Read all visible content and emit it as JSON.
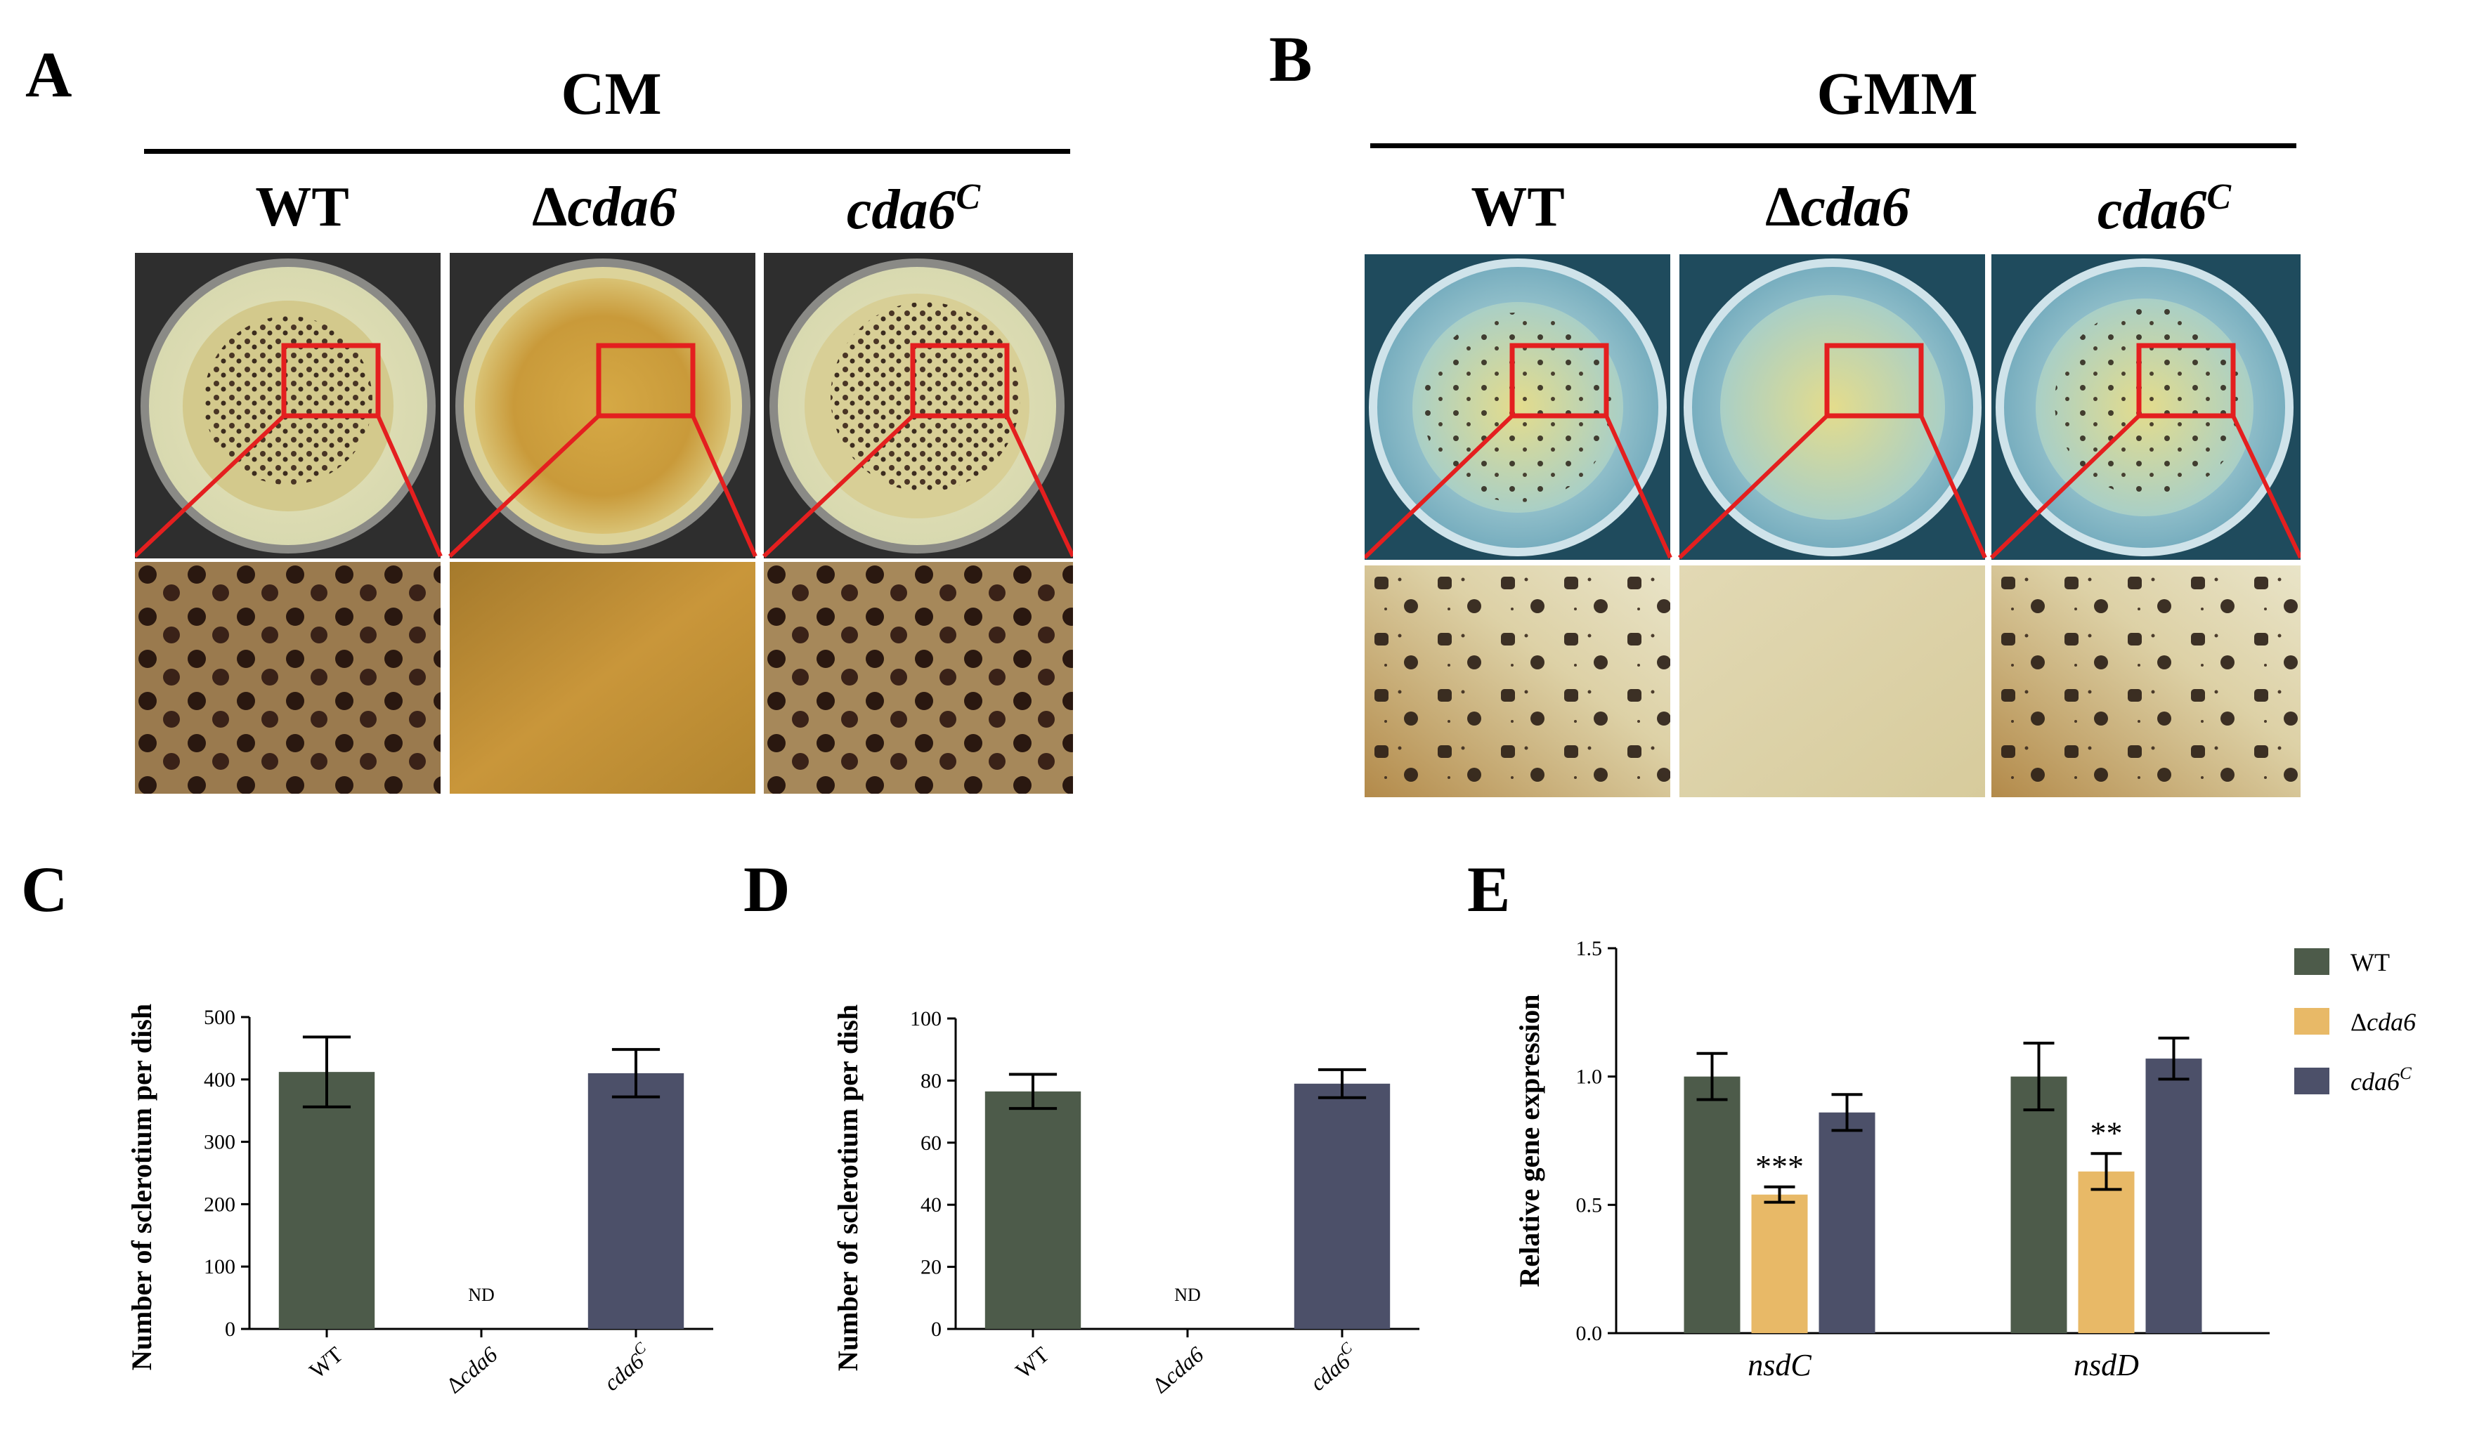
{
  "figure": {
    "panels": {
      "A": {
        "letter": "A",
        "condition": "CM",
        "strains": [
          {
            "prefix": "",
            "name": "WT",
            "sup": ""
          },
          {
            "prefix": "Δ",
            "name": "cda6",
            "sup": ""
          },
          {
            "prefix": "",
            "name": "cda6",
            "sup": "C"
          }
        ]
      },
      "B": {
        "letter": "B",
        "condition": "GMM",
        "strains": [
          {
            "prefix": "",
            "name": "WT",
            "sup": ""
          },
          {
            "prefix": "Δ",
            "name": "cda6",
            "sup": ""
          },
          {
            "prefix": "",
            "name": "cda6",
            "sup": "C"
          }
        ]
      },
      "C": {
        "letter": "C"
      },
      "D": {
        "letter": "D"
      },
      "E": {
        "letter": "E"
      }
    }
  },
  "colors": {
    "wt": "#4d5b4a",
    "delta": "#e8b967",
    "comp": "#4c5069",
    "zoom_box": "#e41f1f",
    "plate_dark": "#2f2f2f",
    "plate_blue_bg": "#1f4b5d"
  },
  "chart_data": [
    {
      "id": "C",
      "type": "bar",
      "title": "",
      "ylabel": "Number of sclerotium per dish",
      "categories": [
        "WT",
        "Δcda6",
        "cda6C"
      ],
      "category_labels": [
        {
          "prefix": "",
          "name": "WT",
          "sup": ""
        },
        {
          "prefix": "Δ",
          "name": "cda6",
          "sup": ""
        },
        {
          "prefix": "",
          "name": "cda6",
          "sup": "C"
        }
      ],
      "values": [
        412,
        0,
        410
      ],
      "errors": [
        56,
        0,
        38
      ],
      "annotations": [
        "",
        "ND",
        ""
      ],
      "ylim": [
        0,
        500
      ],
      "yticks": [
        0,
        100,
        200,
        300,
        400,
        500
      ],
      "ytick_labels": [
        "0",
        "100",
        "200",
        "300",
        "400",
        "500"
      ]
    },
    {
      "id": "D",
      "type": "bar",
      "title": "",
      "ylabel": "Number of sclerotium per dish",
      "categories": [
        "WT",
        "Δcda6",
        "cda6C"
      ],
      "category_labels": [
        {
          "prefix": "",
          "name": "WT",
          "sup": ""
        },
        {
          "prefix": "Δ",
          "name": "cda6",
          "sup": ""
        },
        {
          "prefix": "",
          "name": "cda6",
          "sup": "C"
        }
      ],
      "values": [
        76.5,
        0,
        79
      ],
      "errors": [
        5.5,
        0,
        4.5
      ],
      "annotations": [
        "",
        "ND",
        ""
      ],
      "ylim": [
        0,
        100
      ],
      "yticks": [
        0,
        20,
        40,
        60,
        80,
        100
      ],
      "ytick_labels": [
        "0",
        "20",
        "40",
        "60",
        "80",
        "100"
      ]
    },
    {
      "id": "E",
      "type": "bar",
      "title": "",
      "ylabel": "Relative gene expression",
      "categories": [
        "nsdC",
        "nsdD"
      ],
      "series": [
        {
          "name": "WT",
          "legend": {
            "prefix": "",
            "name": "WT",
            "sup": ""
          },
          "values": [
            1.0,
            1.0
          ],
          "errors": [
            0.09,
            0.13
          ],
          "annotations": [
            "",
            ""
          ]
        },
        {
          "name": "Δcda6",
          "legend": {
            "prefix": "Δ",
            "name": "cda6",
            "sup": ""
          },
          "values": [
            0.54,
            0.63
          ],
          "errors": [
            0.03,
            0.07
          ],
          "annotations": [
            "***",
            "**"
          ]
        },
        {
          "name": "cda6C",
          "legend": {
            "prefix": "",
            "name": "cda6",
            "sup": "C"
          },
          "values": [
            0.86,
            1.07
          ],
          "errors": [
            0.07,
            0.08
          ],
          "annotations": [
            "",
            ""
          ]
        }
      ],
      "ylim": [
        0,
        1.5
      ],
      "yticks": [
        0,
        0.5,
        1.0,
        1.5
      ],
      "ytick_labels": [
        "0.0",
        "0.5",
        "1.0",
        "1.5"
      ],
      "legend_position": "top-right"
    }
  ]
}
